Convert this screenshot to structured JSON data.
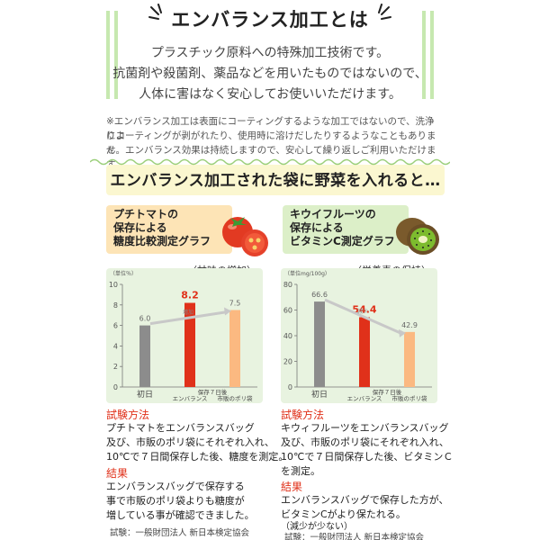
{
  "header": {
    "title": "エンバランス加工とは",
    "intro": [
      "プラスチック原料への特殊加工技術です。",
      "抗菌剤や殺菌剤、薬品などを用いたものではないので、",
      "人体に害はなく安心してお使いいただけます。"
    ],
    "note": [
      "※エンバランス加工は表面にコーティングするような加工ではないので、洗浄によ",
      "りコーティングが剥がれたり、使用時に溶けだしたりするようなこともありませ",
      "ん。エンバランス効果は持続しますので、安心して繰り返しご利用いただけます。"
    ]
  },
  "section": {
    "title": "エンバランス加工された袋に野菜を入れると…"
  },
  "left": {
    "heading": [
      "プチトマトの",
      "保存による",
      "糖度比較測定グラフ"
    ],
    "caption": "〈甘味の増加〉",
    "method_title": "試験方法",
    "method": [
      "プチトマトをエンバランスバッグ",
      "及び、市販のポリ袋にそれぞれ入れ、",
      "10℃で７日間保存した後、糖度を測定。"
    ],
    "result_title": "結果",
    "result": [
      "エンバランスバッグで保存する",
      "事で市販のポリ袋よりも糖度が",
      "増している事が確認できました。"
    ],
    "source": "試験：一般財団法人 新日本検定協会",
    "colors": {
      "head": "#fde4b6",
      "day0": "#8c8c8c",
      "enbalance": "#e0311a",
      "market": "#fbb981"
    }
  },
  "right": {
    "heading": [
      "キウイフルーツの",
      "保存による",
      "ビタミンC測定グラフ"
    ],
    "caption": "〈栄養素の保持〉",
    "method_title": "試験方法",
    "method": [
      "キウィフルーツをエンバランスバッグ",
      "及び、市販のポリ袋にそれぞれ入れ、",
      "10℃で７日間保存した後、ビタミンＣ",
      "を測定。"
    ],
    "result_title": "結果",
    "result": [
      "エンバランスバッグで保存した方が、",
      "ビタミンCがより保たれる。",
      "（減少が少ない）"
    ],
    "source": "試験：一般財団法人 新日本検定協会",
    "colors": {
      "head": "#dcefc8",
      "day0": "#8c8c8c",
      "enbalance": "#e0311a",
      "market": "#fbb981"
    }
  },
  "chart_data": [
    {
      "type": "bar",
      "title": "〈甘味の増加〉",
      "ylabel": "（単位％）",
      "categories": [
        "初日",
        "エンバランス",
        "市販のポリ袋"
      ],
      "category_line2": [
        "",
        "保存７日後",
        ""
      ],
      "values": [
        6.0,
        8.2,
        7.5
      ],
      "labels": [
        "6.0",
        "8.2",
        "7.5"
      ],
      "ylim": [
        0,
        10
      ],
      "ticks": [
        "0",
        "2",
        "4",
        "6",
        "8",
        "10"
      ],
      "annotation": "増加",
      "grid": false
    },
    {
      "type": "bar",
      "title": "〈栄養素の保持〉",
      "ylabel": "（単位mg/100g）",
      "categories": [
        "初日",
        "エンバランス",
        "市販のポリ袋"
      ],
      "category_line2": [
        "",
        "保存７日後",
        ""
      ],
      "values": [
        66.6,
        54.4,
        42.9
      ],
      "labels": [
        "66.6",
        "54.4",
        "42.9"
      ],
      "ylim": [
        0,
        80
      ],
      "ticks": [
        "0",
        "20",
        "40",
        "60",
        "80"
      ],
      "annotation": "減少",
      "grid": false
    }
  ]
}
